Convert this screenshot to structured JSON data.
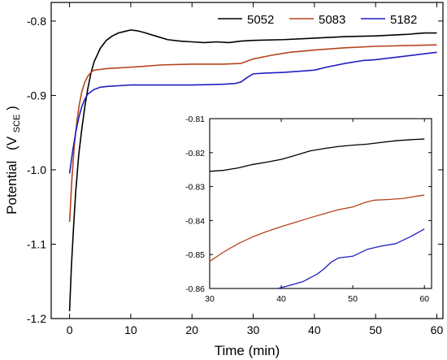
{
  "chart_data": [
    {
      "type": "line",
      "xlabel": "Time (min)",
      "ylabel": "Potential",
      "ylabel_sub": "SCE",
      "ylabel_open": "(V",
      "ylabel_close": ")",
      "xlim": [
        -3,
        61
      ],
      "ylim": [
        -1.2,
        -0.775
      ],
      "xticks": [
        0,
        10,
        20,
        30,
        40,
        50,
        60
      ],
      "yticks": [
        -1.2,
        -1.1,
        -1.0,
        -0.9,
        -0.8
      ],
      "ytick_labels": [
        "-1.2",
        "-1.1",
        "-1.0",
        "-0.9",
        "-0.8"
      ],
      "grid": false,
      "legend": "top-right",
      "series": [
        {
          "name": "5052",
          "color": "#000000",
          "points": [
            [
              0,
              -1.19
            ],
            [
              0.3,
              -1.13
            ],
            [
              0.7,
              -1.07
            ],
            [
              1,
              -1.03
            ],
            [
              1.5,
              -0.98
            ],
            [
              2,
              -0.945
            ],
            [
              2.5,
              -0.915
            ],
            [
              3,
              -0.89
            ],
            [
              3.5,
              -0.87
            ],
            [
              4,
              -0.855
            ],
            [
              5,
              -0.837
            ],
            [
              6,
              -0.826
            ],
            [
              7,
              -0.82
            ],
            [
              8,
              -0.816
            ],
            [
              9,
              -0.814
            ],
            [
              10,
              -0.812
            ],
            [
              11,
              -0.813
            ],
            [
              12,
              -0.815
            ],
            [
              14,
              -0.82
            ],
            [
              16,
              -0.825
            ],
            [
              18,
              -0.827
            ],
            [
              20,
              -0.828
            ],
            [
              22,
              -0.829
            ],
            [
              24,
              -0.828
            ],
            [
              26,
              -0.829
            ],
            [
              28,
              -0.827
            ],
            [
              30,
              -0.826
            ],
            [
              35,
              -0.825
            ],
            [
              40,
              -0.823
            ],
            [
              45,
              -0.821
            ],
            [
              50,
              -0.82
            ],
            [
              55,
              -0.818
            ],
            [
              58,
              -0.816
            ],
            [
              60,
              -0.816
            ]
          ]
        },
        {
          "name": "5083",
          "color": "#b5451b",
          "points": [
            [
              0,
              -1.07
            ],
            [
              0.4,
              -1.01
            ],
            [
              0.8,
              -0.965
            ],
            [
              1.2,
              -0.935
            ],
            [
              1.6,
              -0.912
            ],
            [
              2,
              -0.895
            ],
            [
              2.5,
              -0.882
            ],
            [
              3,
              -0.874
            ],
            [
              3.5,
              -0.869
            ],
            [
              4,
              -0.866
            ],
            [
              5,
              -0.865
            ],
            [
              6,
              -0.864
            ],
            [
              8,
              -0.863
            ],
            [
              10,
              -0.862
            ],
            [
              12,
              -0.861
            ],
            [
              15,
              -0.859
            ],
            [
              20,
              -0.858
            ],
            [
              25,
              -0.858
            ],
            [
              28,
              -0.857
            ],
            [
              30,
              -0.851
            ],
            [
              33,
              -0.846
            ],
            [
              36,
              -0.842
            ],
            [
              40,
              -0.839
            ],
            [
              45,
              -0.836
            ],
            [
              50,
              -0.834
            ],
            [
              55,
              -0.833
            ],
            [
              60,
              -0.832
            ]
          ]
        },
        {
          "name": "5182",
          "color": "#1f1fbf",
          "points": [
            [
              0,
              -1.005
            ],
            [
              0.5,
              -0.975
            ],
            [
              1,
              -0.95
            ],
            [
              1.5,
              -0.93
            ],
            [
              2,
              -0.915
            ],
            [
              2.5,
              -0.905
            ],
            [
              3,
              -0.898
            ],
            [
              4,
              -0.892
            ],
            [
              5,
              -0.889
            ],
            [
              6,
              -0.888
            ],
            [
              8,
              -0.887
            ],
            [
              10,
              -0.886
            ],
            [
              15,
              -0.886
            ],
            [
              20,
              -0.886
            ],
            [
              25,
              -0.885
            ],
            [
              27,
              -0.884
            ],
            [
              28,
              -0.882
            ],
            [
              29,
              -0.876
            ],
            [
              30,
              -0.871
            ],
            [
              32,
              -0.87
            ],
            [
              35,
              -0.869
            ],
            [
              40,
              -0.866
            ],
            [
              42,
              -0.862
            ],
            [
              45,
              -0.857
            ],
            [
              48,
              -0.853
            ],
            [
              50,
              -0.852
            ],
            [
              55,
              -0.847
            ],
            [
              60,
              -0.842
            ]
          ]
        }
      ]
    },
    {
      "type": "line",
      "xlim": [
        30,
        61
      ],
      "ylim": [
        -0.86,
        -0.81
      ],
      "xticks": [
        30,
        40,
        50,
        60
      ],
      "yticks": [
        -0.86,
        -0.85,
        -0.84,
        -0.83,
        -0.82,
        -0.81
      ],
      "ytick_labels": [
        "-0.86",
        "-0.85",
        "-0.84",
        "-0.83",
        "-0.82",
        "-0.81"
      ],
      "grid": false,
      "legend": "none",
      "series": [
        {
          "name": "5052",
          "color": "#000000",
          "points": [
            [
              30,
              -0.8255
            ],
            [
              32,
              -0.8252
            ],
            [
              34,
              -0.8245
            ],
            [
              36,
              -0.8235
            ],
            [
              38,
              -0.8228
            ],
            [
              40,
              -0.822
            ],
            [
              42,
              -0.8208
            ],
            [
              44,
              -0.8195
            ],
            [
              46,
              -0.8188
            ],
            [
              48,
              -0.8182
            ],
            [
              50,
              -0.8178
            ],
            [
              52,
              -0.8175
            ],
            [
              54,
              -0.817
            ],
            [
              56,
              -0.8165
            ],
            [
              58,
              -0.8162
            ],
            [
              60,
              -0.816
            ]
          ]
        },
        {
          "name": "5083",
          "color": "#b5451b",
          "points": [
            [
              30,
              -0.852
            ],
            [
              32,
              -0.8492
            ],
            [
              34,
              -0.8468
            ],
            [
              36,
              -0.8448
            ],
            [
              38,
              -0.8432
            ],
            [
              40,
              -0.8418
            ],
            [
              42,
              -0.8405
            ],
            [
              44,
              -0.8392
            ],
            [
              46,
              -0.838
            ],
            [
              48,
              -0.8368
            ],
            [
              50,
              -0.836
            ],
            [
              51,
              -0.8352
            ],
            [
              52,
              -0.8345
            ],
            [
              53,
              -0.834
            ],
            [
              55,
              -0.8338
            ],
            [
              57,
              -0.8335
            ],
            [
              59,
              -0.8328
            ],
            [
              60,
              -0.8325
            ]
          ]
        },
        {
          "name": "5182",
          "color": "#1f1fbf",
          "points": [
            [
              39.5,
              -0.86
            ],
            [
              41,
              -0.8592
            ],
            [
              43,
              -0.858
            ],
            [
              45,
              -0.8558
            ],
            [
              46,
              -0.8542
            ],
            [
              47,
              -0.8522
            ],
            [
              48,
              -0.851
            ],
            [
              50,
              -0.8505
            ],
            [
              52,
              -0.8485
            ],
            [
              54,
              -0.8475
            ],
            [
              56,
              -0.8468
            ],
            [
              58,
              -0.8448
            ],
            [
              60,
              -0.8425
            ]
          ]
        }
      ]
    }
  ]
}
